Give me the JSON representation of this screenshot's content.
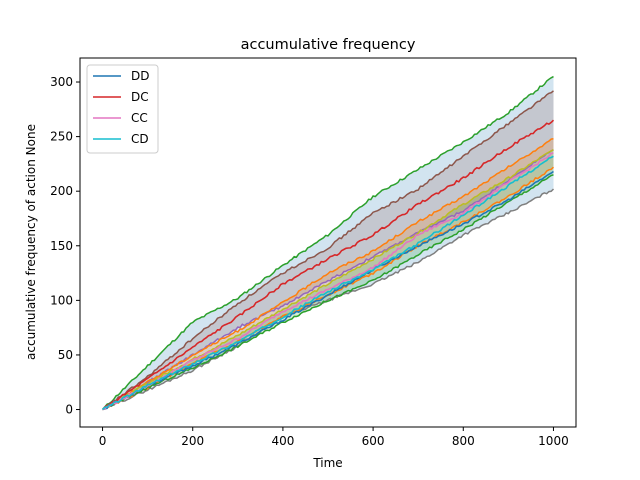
{
  "chart_data": {
    "type": "line",
    "title": "accumulative frequency",
    "xlabel": "Time",
    "ylabel": "accumulative frequency of action None",
    "xlim": [
      -50,
      1050
    ],
    "ylim": [
      -16,
      322
    ],
    "xticks": [
      0,
      200,
      400,
      600,
      800,
      1000
    ],
    "yticks": [
      0,
      50,
      100,
      150,
      200,
      250,
      300
    ],
    "grid": false,
    "legend_position": "top-left",
    "series": [
      {
        "name": "DD",
        "color": "#1f77b4",
        "x": [
          0,
          100,
          200,
          300,
          400,
          500,
          600,
          700,
          800,
          900,
          1000
        ],
        "values": [
          0,
          22,
          40,
          60,
          82,
          105,
          128,
          150,
          170,
          192,
          218
        ],
        "band_color": "#1f77b4",
        "band_upper": {
          "color": "#2ca02c",
          "values": [
            0,
            40,
            80,
            102,
            132,
            160,
            195,
            220,
            245,
            272,
            305
          ]
        },
        "band_lower": {
          "color": "#7f7f7f",
          "values": [
            0,
            18,
            36,
            58,
            85,
            100,
            115,
            135,
            160,
            180,
            202
          ]
        }
      },
      {
        "name": "DC",
        "color": "#d62728",
        "x": [
          0,
          100,
          200,
          300,
          400,
          500,
          600,
          700,
          800,
          900,
          1000
        ],
        "values": [
          0,
          28,
          57,
          85,
          115,
          138,
          160,
          188,
          212,
          240,
          265
        ],
        "band_color": "#8c564b",
        "band_upper": {
          "color": "#8c564b",
          "values": [
            0,
            30,
            65,
            97,
            125,
            148,
            180,
            202,
            232,
            262,
            292
          ]
        },
        "band_lower": {
          "color": "#9467bd",
          "values": [
            0,
            25,
            50,
            75,
            95,
            118,
            140,
            162,
            182,
            210,
            238
          ]
        }
      },
      {
        "name": "CC",
        "color": "#e377c2",
        "x": [
          0,
          100,
          200,
          300,
          400,
          500,
          600,
          700,
          800,
          900,
          1000
        ],
        "values": [
          0,
          22,
          45,
          65,
          90,
          110,
          130,
          160,
          180,
          208,
          235
        ],
        "band_color": "#ff7f0e",
        "band_upper": {
          "color": "#ff7f0e",
          "values": [
            0,
            25,
            50,
            72,
            98,
            125,
            145,
            172,
            195,
            222,
            248
          ]
        },
        "band_lower": {
          "color": "#ff7f0e",
          "values": [
            0,
            20,
            42,
            62,
            85,
            105,
            125,
            150,
            172,
            195,
            222
          ]
        }
      },
      {
        "name": "CD",
        "color": "#17becf",
        "x": [
          0,
          100,
          200,
          300,
          400,
          500,
          600,
          700,
          800,
          900,
          1000
        ],
        "values": [
          0,
          22,
          42,
          62,
          85,
          108,
          128,
          152,
          178,
          205,
          232
        ],
        "band_color": "#2ca02c",
        "band_upper": {
          "color": "#bcbd22",
          "values": [
            0,
            24,
            46,
            68,
            92,
            115,
            138,
            162,
            188,
            212,
            238
          ]
        },
        "band_lower": {
          "color": "#2ca02c",
          "values": [
            0,
            20,
            38,
            58,
            80,
            100,
            118,
            142,
            165,
            190,
            215
          ]
        }
      }
    ]
  }
}
